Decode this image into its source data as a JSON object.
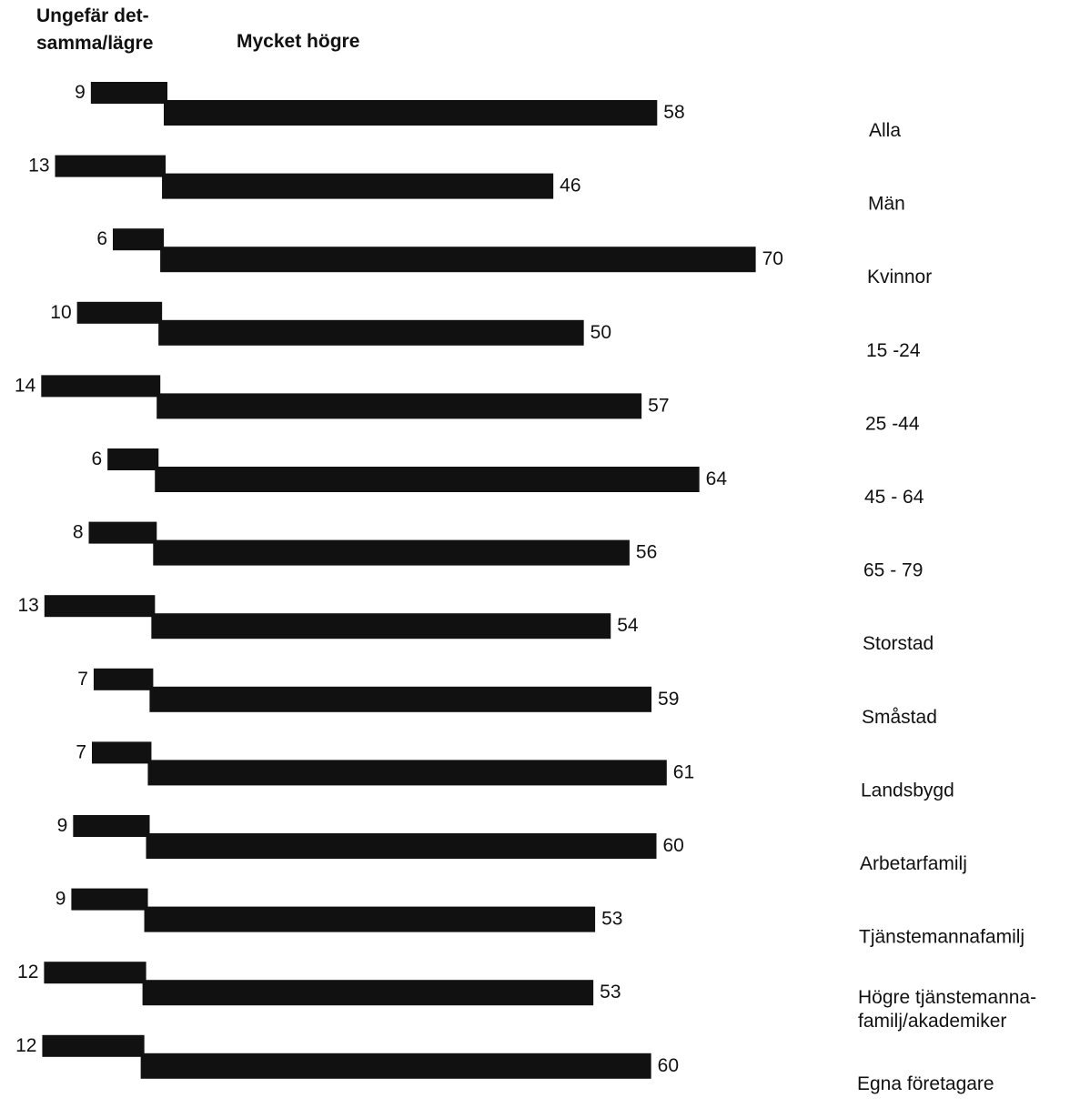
{
  "chart_data": {
    "type": "bar",
    "layout": "horizontal-diverging-stacked",
    "headers": {
      "left_title_line1": "Ungefär det-",
      "left_title_line2": "samma/lägre",
      "right_title": "Mycket högre"
    },
    "series": [
      {
        "name": "Ungefär det-samma/lägre",
        "color": "#111111"
      },
      {
        "name": "Mycket högre",
        "color": "#111111"
      }
    ],
    "rows": [
      {
        "category_lines": [
          "Alla"
        ],
        "lower": 9,
        "higher": 58
      },
      {
        "category_lines": [
          "Män"
        ],
        "lower": 13,
        "higher": 46
      },
      {
        "category_lines": [
          "Kvinnor"
        ],
        "lower": 6,
        "higher": 70
      },
      {
        "category_lines": [
          "15 -24"
        ],
        "lower": 10,
        "higher": 50
      },
      {
        "category_lines": [
          "25 -44"
        ],
        "lower": 14,
        "higher": 57
      },
      {
        "category_lines": [
          "45 - 64"
        ],
        "lower": 6,
        "higher": 64
      },
      {
        "category_lines": [
          "65 - 79"
        ],
        "lower": 8,
        "higher": 56
      },
      {
        "category_lines": [
          "Storstad"
        ],
        "lower": 13,
        "higher": 54
      },
      {
        "category_lines": [
          "Småstad"
        ],
        "lower": 7,
        "higher": 59
      },
      {
        "category_lines": [
          "Landsbygd"
        ],
        "lower": 7,
        "higher": 61
      },
      {
        "category_lines": [
          "Arbetarfamilj"
        ],
        "lower": 9,
        "higher": 60
      },
      {
        "category_lines": [
          "Tjänstemannafamilj"
        ],
        "lower": 9,
        "higher": 53
      },
      {
        "category_lines": [
          "Högre tjänstemanna-",
          "familj/akademiker"
        ],
        "lower": 12,
        "higher": 53
      },
      {
        "category_lines": [
          "Egna företagare"
        ],
        "lower": 12,
        "higher": 60
      }
    ],
    "value_unit": "",
    "grid": false,
    "legend": "none"
  }
}
